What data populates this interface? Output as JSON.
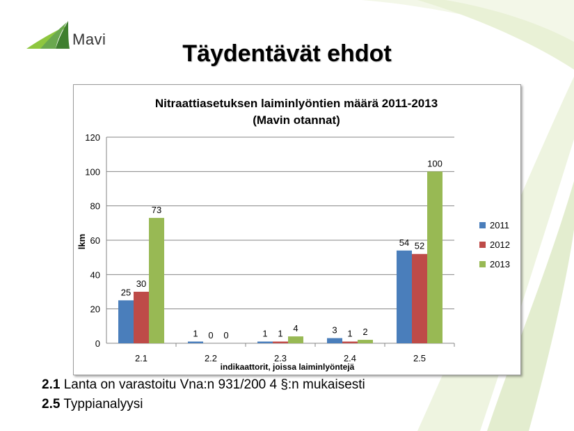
{
  "slide": {
    "logo_text": "Mavi",
    "title": "Täydentävät ehdot"
  },
  "notes": [
    {
      "code": "2.1",
      "text": "Lanta on varastoitu Vna:n 931/200 4 §:n mukaisesti"
    },
    {
      "code": "2.5",
      "text": "Typpianalyysi"
    }
  ],
  "colors": {
    "series_2011": "#4a7ebb",
    "series_2012": "#be4b48",
    "series_2013": "#98b954",
    "gridline": "#868686"
  },
  "chart_data": {
    "type": "bar",
    "title": "Nitraattiasetuksen laiminlyöntien määrä 2011-2013",
    "subtitle": "(Mavin otannat)",
    "xlabel": "indikaattorit, joissa laiminlyöntejä",
    "ylabel": "lkm",
    "categories": [
      "2.1",
      "2.2",
      "2.3",
      "2.4",
      "2.5"
    ],
    "series": [
      {
        "name": "2011",
        "values": [
          25,
          1,
          1,
          3,
          54
        ]
      },
      {
        "name": "2012",
        "values": [
          30,
          0,
          1,
          1,
          52
        ]
      },
      {
        "name": "2013",
        "values": [
          73,
          0,
          4,
          2,
          100
        ]
      }
    ],
    "ylim": [
      0,
      120
    ],
    "yticks": [
      0,
      20,
      40,
      60,
      80,
      100,
      120
    ],
    "grid": true,
    "data_labels": true,
    "legend_position": "right"
  }
}
